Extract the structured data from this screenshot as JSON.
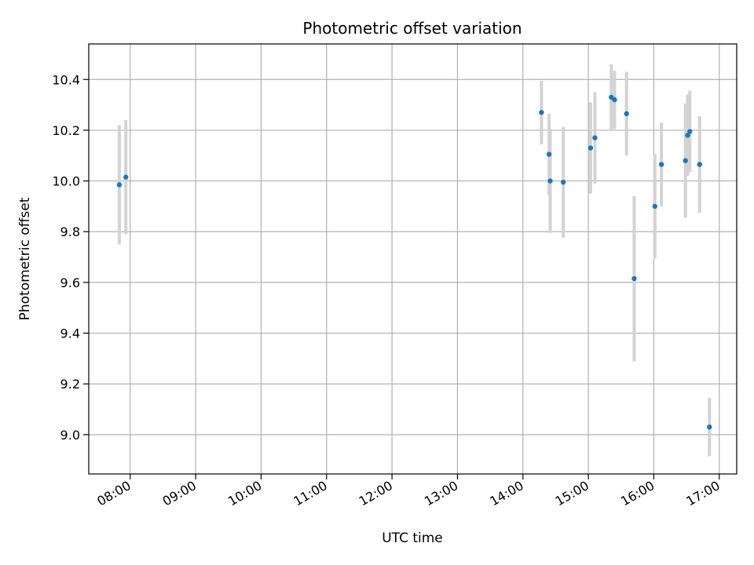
{
  "chart_data": {
    "type": "scatter",
    "title": "Photometric offset variation",
    "xlabel": "UTC time",
    "ylabel": "Photometric offset",
    "grid": true,
    "xlim": [
      "07:22",
      "17:16"
    ],
    "ylim": [
      8.845,
      10.54
    ],
    "x_ticks": [
      "08:00",
      "09:00",
      "10:00",
      "11:00",
      "12:00",
      "13:00",
      "14:00",
      "15:00",
      "16:00",
      "17:00"
    ],
    "y_ticks": [
      "9.0",
      "9.2",
      "9.4",
      "9.6",
      "9.8",
      "10.0",
      "10.2",
      "10.4"
    ],
    "marker_color": "#1f77b4",
    "errorbar_color": "#d3d3d3",
    "points": [
      {
        "x": "07:50",
        "y": 9.985,
        "err": 0.235
      },
      {
        "x": "07:56",
        "y": 10.015,
        "err": 0.225
      },
      {
        "x": "14:17",
        "y": 10.27,
        "err": 0.125
      },
      {
        "x": "14:24",
        "y": 10.105,
        "err": 0.16
      },
      {
        "x": "14:25",
        "y": 10.0,
        "err": 0.205
      },
      {
        "x": "14:37",
        "y": 9.995,
        "err": 0.218
      },
      {
        "x": "15:02",
        "y": 10.13,
        "err": 0.18
      },
      {
        "x": "15:06",
        "y": 10.17,
        "err": 0.18
      },
      {
        "x": "15:21",
        "y": 10.33,
        "err": 0.13
      },
      {
        "x": "15:24",
        "y": 10.32,
        "err": 0.115
      },
      {
        "x": "15:35",
        "y": 10.265,
        "err": 0.165
      },
      {
        "x": "15:42",
        "y": 9.615,
        "err": 0.325
      },
      {
        "x": "16:01",
        "y": 9.9,
        "err": 0.205
      },
      {
        "x": "16:07",
        "y": 10.065,
        "err": 0.165
      },
      {
        "x": "16:29",
        "y": 10.08,
        "err": 0.225
      },
      {
        "x": "16:31",
        "y": 10.18,
        "err": 0.16
      },
      {
        "x": "16:33",
        "y": 10.195,
        "err": 0.16
      },
      {
        "x": "16:42",
        "y": 10.065,
        "err": 0.19
      },
      {
        "x": "16:51",
        "y": 9.03,
        "err": 0.115
      }
    ]
  }
}
